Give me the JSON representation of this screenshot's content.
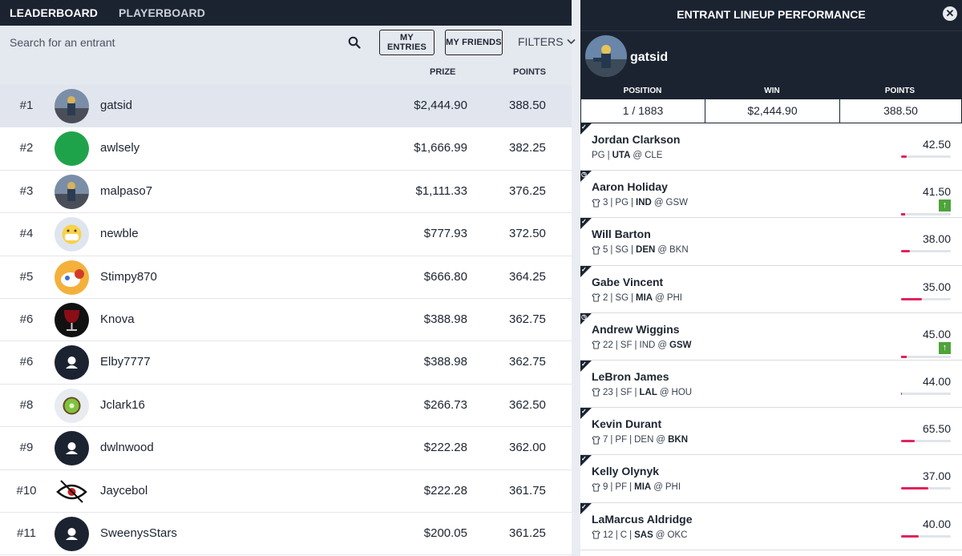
{
  "nav": {
    "tabs": [
      "LEADERBOARD",
      "PLAYERBOARD"
    ]
  },
  "toolbar": {
    "search_placeholder": "Search for an entrant",
    "my_entries": "MY ENTRIES",
    "my_friends": "MY FRIENDS",
    "filters": "FILTERS"
  },
  "columns": {
    "prize": "PRIZE",
    "points": "POINTS"
  },
  "colors": {
    "dark": "#1b2331",
    "accent_red": "#e0245e",
    "up_green": "#4fa33a"
  },
  "leaderboard": [
    {
      "rank": "#1",
      "name": "gatsid",
      "prize": "$2,444.90",
      "points": "388.50",
      "avatar": "photo-avatar"
    },
    {
      "rank": "#2",
      "name": "awlsely",
      "prize": "$1,666.99",
      "points": "382.25",
      "avatar": "green-circle-avatar"
    },
    {
      "rank": "#3",
      "name": "malpaso7",
      "prize": "$1,111.33",
      "points": "376.25",
      "avatar": "photo-avatar"
    },
    {
      "rank": "#4",
      "name": "newble",
      "prize": "$777.93",
      "points": "372.50",
      "avatar": "emoji-avatar"
    },
    {
      "rank": "#5",
      "name": "Stimpy870",
      "prize": "$666.80",
      "points": "364.25",
      "avatar": "cartoon-avatar"
    },
    {
      "rank": "#6",
      "name": "Knova",
      "prize": "$388.98",
      "points": "362.75",
      "avatar": "wine-glass-avatar"
    },
    {
      "rank": "#6",
      "name": "Elby7777",
      "prize": "$388.98",
      "points": "362.75",
      "avatar": "default-user-avatar"
    },
    {
      "rank": "#8",
      "name": "Jclark16",
      "prize": "$266.73",
      "points": "362.50",
      "avatar": "kiwi-avatar"
    },
    {
      "rank": "#9",
      "name": "dwlnwood",
      "prize": "$222.28",
      "points": "362.00",
      "avatar": "default-user-avatar"
    },
    {
      "rank": "#10",
      "name": "Jaycebol",
      "prize": "$222.28",
      "points": "361.75",
      "avatar": "eye-logo-avatar"
    },
    {
      "rank": "#11",
      "name": "SweenysStars",
      "prize": "$200.05",
      "points": "361.25",
      "avatar": "default-user-avatar"
    }
  ],
  "panel": {
    "title": "ENTRANT LINEUP PERFORMANCE",
    "username": "gatsid",
    "stats": {
      "position_label": "POSITION",
      "position": "1 / 1883",
      "win_label": "WIN",
      "win": "$2,444.90",
      "points_label": "POINTS",
      "points": "388.50"
    },
    "players": [
      {
        "name": "Jordan Clarkson",
        "jersey": "",
        "pos": "PG",
        "team": "UTA",
        "opp": "CLE",
        "bold": "team",
        "points": "42.50",
        "progress": 0.12,
        "badge": "check",
        "arrow": false
      },
      {
        "name": "Aaron Holiday",
        "jersey": "3",
        "pos": "PG",
        "team": "IND",
        "opp": "GSW",
        "bold": "team",
        "points": "41.50",
        "progress": 0.08,
        "badge": "clock",
        "arrow": true
      },
      {
        "name": "Will Barton",
        "jersey": "5",
        "pos": "SG",
        "team": "DEN",
        "opp": "BKN",
        "bold": "team",
        "points": "38.00",
        "progress": 0.18,
        "badge": "check",
        "arrow": false
      },
      {
        "name": "Gabe Vincent",
        "jersey": "2",
        "pos": "SG",
        "team": "MIA",
        "opp": "PHI",
        "bold": "team",
        "points": "35.00",
        "progress": 0.42,
        "badge": "check",
        "arrow": false
      },
      {
        "name": "Andrew Wiggins",
        "jersey": "22",
        "pos": "SF",
        "team": "IND",
        "opp": "GSW",
        "bold": "opp",
        "points": "45.00",
        "progress": 0.12,
        "badge": "clock",
        "arrow": true
      },
      {
        "name": "LeBron James",
        "jersey": "23",
        "pos": "SF",
        "team": "LAL",
        "opp": "HOU",
        "bold": "team",
        "points": "44.00",
        "progress": 0.02,
        "badge": "check",
        "arrow": false
      },
      {
        "name": "Kevin Durant",
        "jersey": "7",
        "pos": "PF",
        "team": "DEN",
        "opp": "BKN",
        "bold": "opp",
        "points": "65.50",
        "progress": 0.28,
        "badge": "check",
        "arrow": false
      },
      {
        "name": "Kelly Olynyk",
        "jersey": "9",
        "pos": "PF",
        "team": "MIA",
        "opp": "PHI",
        "bold": "team",
        "points": "37.00",
        "progress": 0.55,
        "badge": "check",
        "arrow": false
      },
      {
        "name": "LaMarcus Aldridge",
        "jersey": "12",
        "pos": "C",
        "team": "SAS",
        "opp": "OKC",
        "bold": "team",
        "points": "40.00",
        "progress": 0.35,
        "badge": "check",
        "arrow": false
      }
    ]
  }
}
